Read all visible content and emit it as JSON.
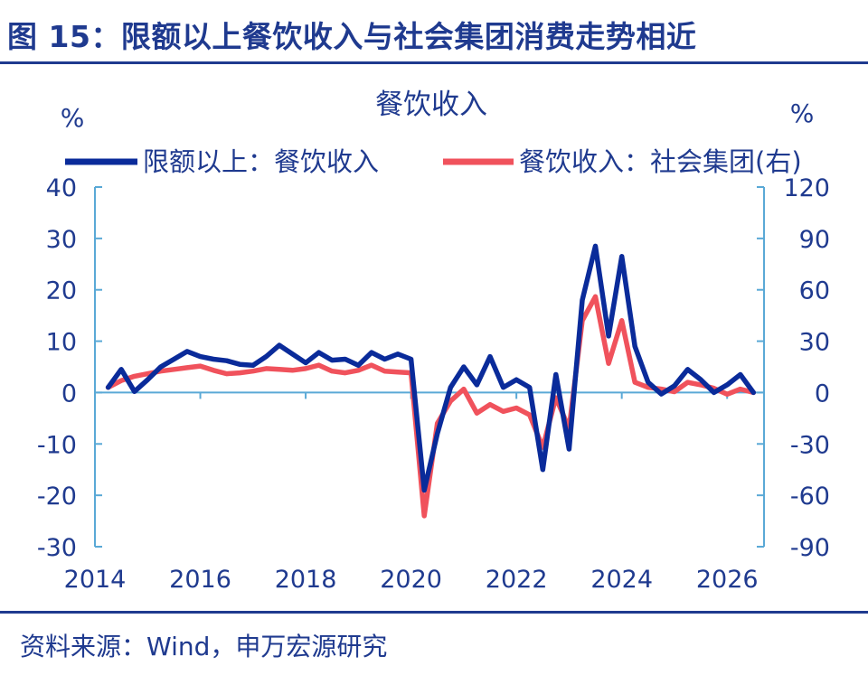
{
  "figure": {
    "title": "图 15：限额以上餐饮收入与社会集团消费走势相近",
    "source": "资料来源：Wind，申万宏源研究"
  },
  "colors": {
    "title_blue": "#1f3a8f",
    "series_blue": "#0a2b9a",
    "series_red": "#f0525c",
    "axis": "#5aa9d6"
  },
  "chart_data": {
    "type": "line",
    "title": "餐饮收入",
    "y_left": {
      "unit": "%",
      "lim": [
        -30,
        40
      ],
      "ticks": [
        "-30",
        "-20",
        "-10",
        "0",
        "10",
        "20",
        "30",
        "40"
      ]
    },
    "y_right": {
      "unit": "%",
      "lim": [
        -90,
        120
      ],
      "ticks": [
        "-90",
        "-60",
        "-30",
        "0",
        "30",
        "60",
        "90",
        "120"
      ]
    },
    "x_lim": [
      2014,
      2026.7
    ],
    "x_ticks": [
      "2014",
      "2016",
      "2018",
      "2020",
      "2022",
      "2024",
      "2026"
    ],
    "legend_position": "top",
    "series": [
      {
        "name": "限额以上：餐饮收入",
        "axis": "left",
        "color": "#0a2b9a",
        "points": [
          [
            2014.25,
            1.0
          ],
          [
            2014.5,
            4.5
          ],
          [
            2014.75,
            0.2
          ],
          [
            2015.0,
            2.5
          ],
          [
            2015.25,
            5.0
          ],
          [
            2015.5,
            6.5
          ],
          [
            2015.75,
            8.0
          ],
          [
            2016.0,
            7.0
          ],
          [
            2016.25,
            6.5
          ],
          [
            2016.5,
            6.2
          ],
          [
            2016.75,
            5.5
          ],
          [
            2017.0,
            5.3
          ],
          [
            2017.25,
            7.0
          ],
          [
            2017.5,
            9.2
          ],
          [
            2017.75,
            7.5
          ],
          [
            2018.0,
            5.8
          ],
          [
            2018.25,
            7.8
          ],
          [
            2018.5,
            6.3
          ],
          [
            2018.75,
            6.5
          ],
          [
            2019.0,
            5.3
          ],
          [
            2019.25,
            7.8
          ],
          [
            2019.5,
            6.5
          ],
          [
            2019.75,
            7.5
          ],
          [
            2020.0,
            6.5
          ],
          [
            2020.25,
            -19.0
          ],
          [
            2020.5,
            -8.0
          ],
          [
            2020.75,
            1.0
          ],
          [
            2021.0,
            5.0
          ],
          [
            2021.25,
            1.5
          ],
          [
            2021.5,
            7.0
          ],
          [
            2021.75,
            1.0
          ],
          [
            2022.0,
            2.5
          ],
          [
            2022.25,
            1.0
          ],
          [
            2022.5,
            -15.0
          ],
          [
            2022.75,
            3.5
          ],
          [
            2023.0,
            -11.0
          ],
          [
            2023.25,
            18.0
          ],
          [
            2023.5,
            28.5
          ],
          [
            2023.75,
            11.0
          ],
          [
            2024.0,
            26.5
          ],
          [
            2024.25,
            9.0
          ],
          [
            2024.5,
            2.0
          ],
          [
            2024.75,
            -0.3
          ],
          [
            2025.0,
            1.3
          ],
          [
            2025.25,
            4.5
          ],
          [
            2025.5,
            2.5
          ],
          [
            2025.75,
            0.0
          ],
          [
            2026.0,
            1.5
          ],
          [
            2026.25,
            3.5
          ],
          [
            2026.5,
            0.0
          ]
        ]
      },
      {
        "name": "餐饮收入：社会集团(右)",
        "axis": "right",
        "color": "#f0525c",
        "points": [
          [
            2014.25,
            3.0
          ],
          [
            2014.5,
            7.0
          ],
          [
            2014.75,
            9.5
          ],
          [
            2015.0,
            11.0
          ],
          [
            2015.25,
            12.5
          ],
          [
            2015.5,
            13.5
          ],
          [
            2015.75,
            14.5
          ],
          [
            2016.0,
            15.5
          ],
          [
            2016.25,
            13.0
          ],
          [
            2016.5,
            11.0
          ],
          [
            2016.75,
            11.5
          ],
          [
            2017.0,
            12.5
          ],
          [
            2017.25,
            14.0
          ],
          [
            2017.5,
            13.5
          ],
          [
            2017.75,
            13.0
          ],
          [
            2018.0,
            14.0
          ],
          [
            2018.25,
            16.0
          ],
          [
            2018.5,
            12.5
          ],
          [
            2018.75,
            11.5
          ],
          [
            2019.0,
            13.0
          ],
          [
            2019.25,
            16.0
          ],
          [
            2019.5,
            12.5
          ],
          [
            2019.75,
            12.0
          ],
          [
            2020.0,
            11.5
          ],
          [
            2020.25,
            -72.0
          ],
          [
            2020.5,
            -18.0
          ],
          [
            2020.75,
            -5.0
          ],
          [
            2021.0,
            2.0
          ],
          [
            2021.25,
            -12.0
          ],
          [
            2021.5,
            -7.0
          ],
          [
            2021.75,
            -11.0
          ],
          [
            2022.0,
            -9.0
          ],
          [
            2022.25,
            -13.0
          ],
          [
            2022.5,
            -32.0
          ],
          [
            2022.75,
            -3.0
          ],
          [
            2023.0,
            -21.0
          ],
          [
            2023.25,
            42.0
          ],
          [
            2023.5,
            56.0
          ],
          [
            2023.75,
            17.0
          ],
          [
            2024.0,
            42.0
          ],
          [
            2024.25,
            6.0
          ],
          [
            2024.5,
            3.0
          ],
          [
            2024.75,
            2.0
          ],
          [
            2025.0,
            0.5
          ],
          [
            2025.25,
            6.0
          ],
          [
            2025.5,
            4.5
          ],
          [
            2025.75,
            2.5
          ],
          [
            2026.0,
            -1.0
          ],
          [
            2026.25,
            2.0
          ],
          [
            2026.5,
            0.0
          ]
        ]
      }
    ]
  }
}
